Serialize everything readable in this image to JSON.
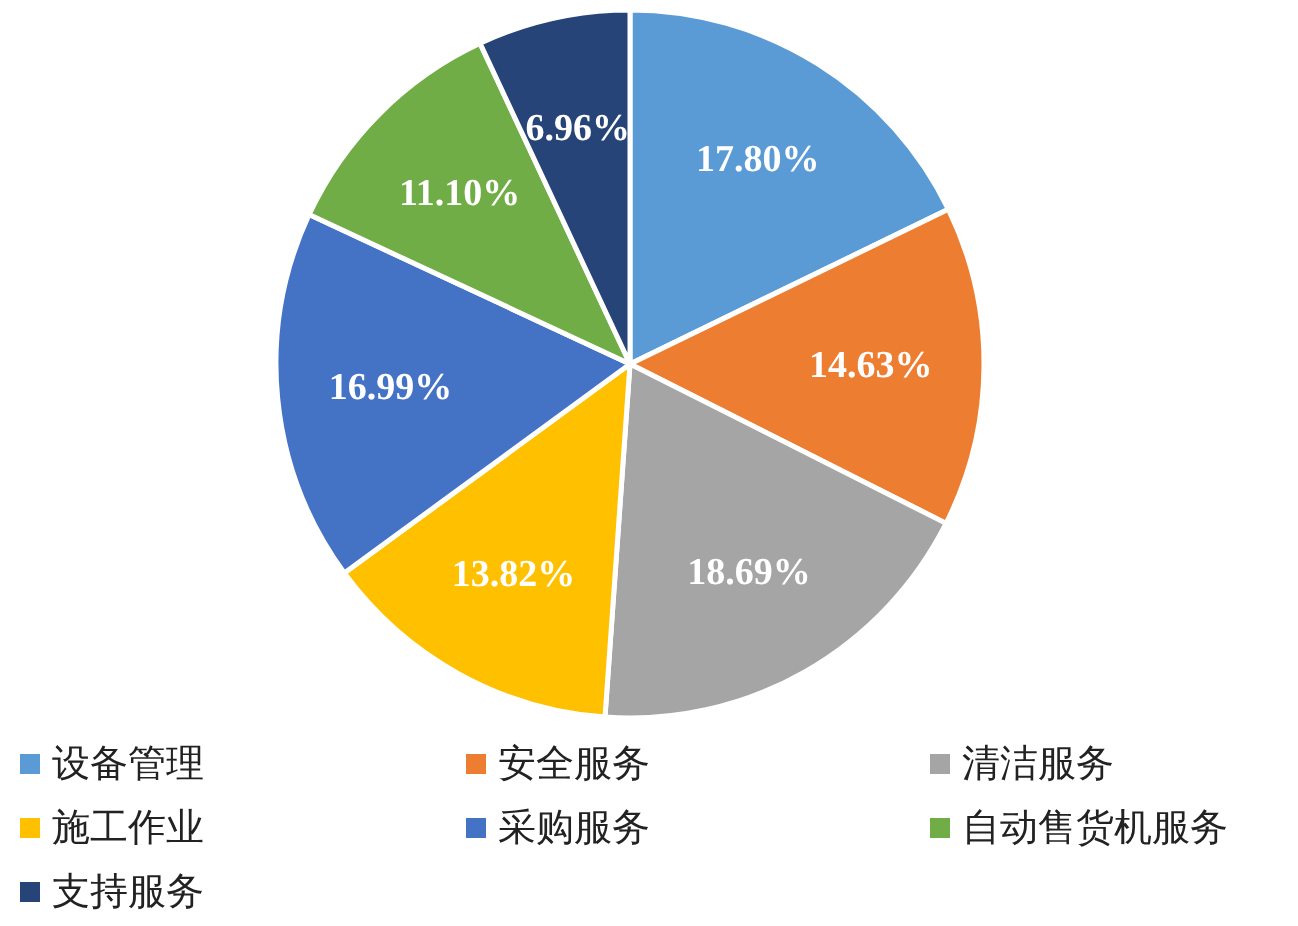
{
  "chart_data": {
    "type": "pie",
    "categories": [
      "设备管理",
      "安全服务",
      "清洁服务",
      "施工作业",
      "采购服务",
      "自动售货机服务",
      "支持服务"
    ],
    "values": [
      17.8,
      14.63,
      18.69,
      13.82,
      16.99,
      11.1,
      6.96
    ],
    "value_labels": [
      "17.80%",
      "14.63%",
      "18.69%",
      "13.82%",
      "16.99%",
      "11.10%",
      "6.96%"
    ],
    "colors": [
      "#5b9bd5",
      "#ed7d31",
      "#a5a5a5",
      "#ffc000",
      "#4472c4",
      "#70ad47",
      "#264478"
    ],
    "legend": "bottom"
  }
}
